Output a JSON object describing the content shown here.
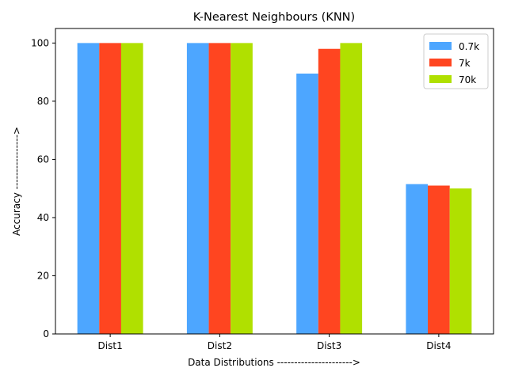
{
  "chart_data": {
    "type": "bar",
    "title": "K-Nearest Neighbours (KNN)",
    "xlabel": "Data Distributions ---------------------->",
    "ylabel": "Accuracy ---------------->",
    "categories": [
      "Dist1",
      "Dist2",
      "Dist3",
      "Dist4"
    ],
    "ylim": [
      0,
      105
    ],
    "yticks": [
      0,
      20,
      40,
      60,
      80,
      100
    ],
    "grid": false,
    "legend_position": "top-right",
    "series": [
      {
        "name": "0.7k",
        "color": "#4da6ff",
        "values": [
          100,
          100,
          89.5,
          51.5
        ]
      },
      {
        "name": "7k",
        "color": "#ff4520",
        "values": [
          100,
          100,
          98.0,
          51.0
        ]
      },
      {
        "name": "70k",
        "color": "#b0e000",
        "values": [
          100,
          100,
          100,
          50.0
        ]
      }
    ]
  }
}
